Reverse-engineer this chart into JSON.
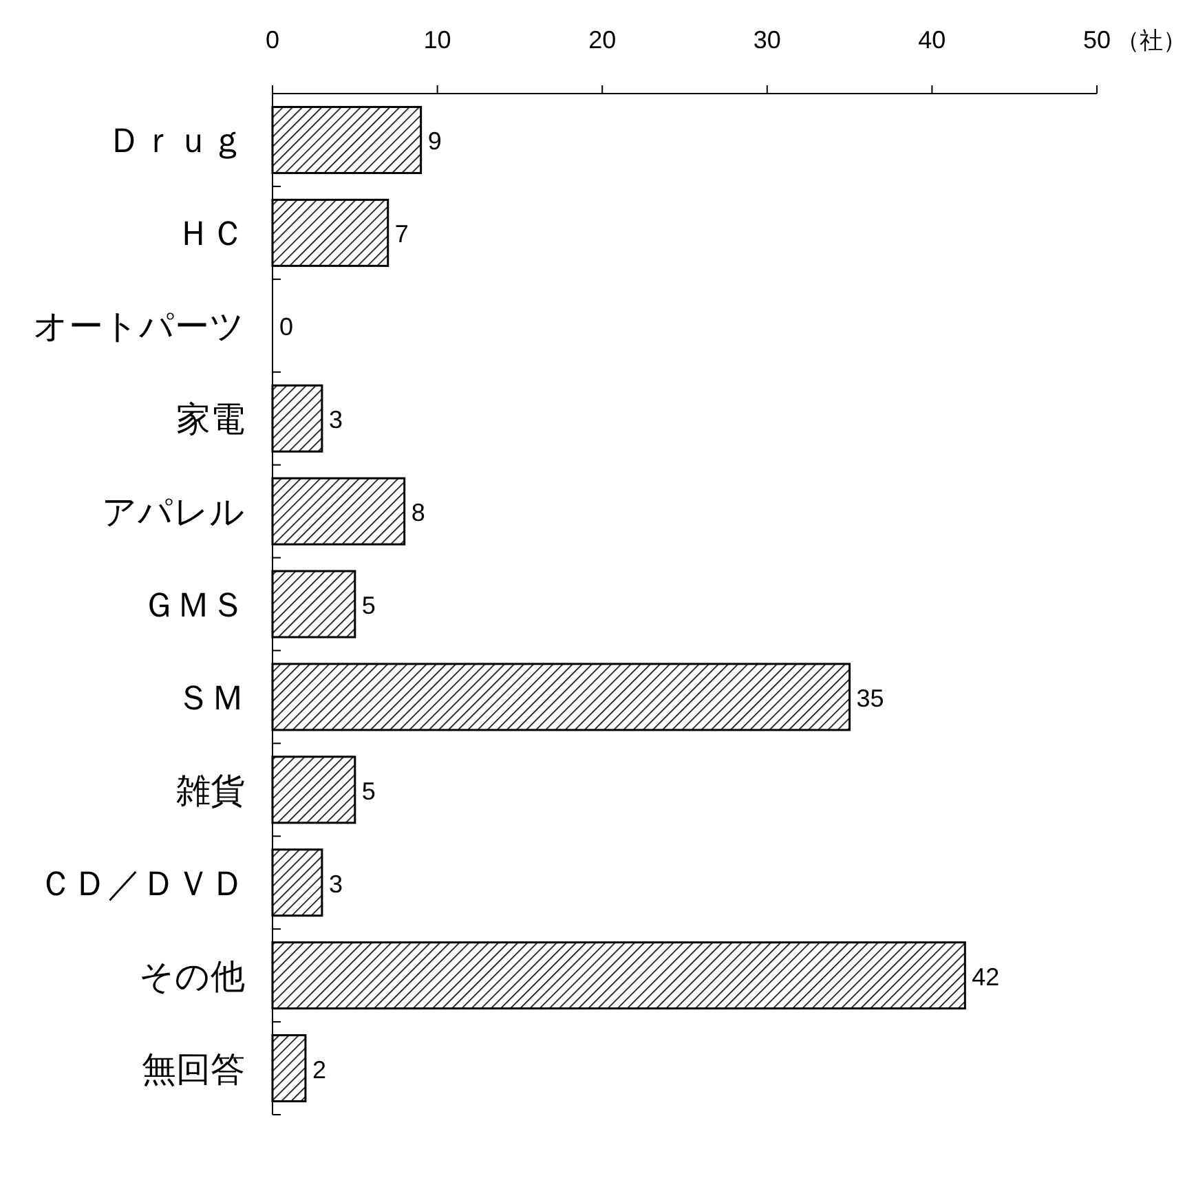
{
  "chart_data": {
    "type": "bar",
    "orientation": "horizontal",
    "xlabel": "（社）",
    "categories": [
      "Ｄｒｕｇ",
      "ＨＣ",
      "オートパーツ",
      "家電",
      "アパレル",
      "ＧＭＳ",
      "ＳＭ",
      "雑貨",
      "ＣＤ／ＤＶＤ",
      "その他",
      "無回答"
    ],
    "values": [
      9,
      7,
      0,
      3,
      8,
      5,
      35,
      5,
      3,
      42,
      2
    ],
    "color": "#000000",
    "xlim": [
      0,
      50
    ],
    "xticks": [
      0,
      10,
      20,
      30,
      40,
      50
    ],
    "data_labels": true,
    "grid": false
  }
}
